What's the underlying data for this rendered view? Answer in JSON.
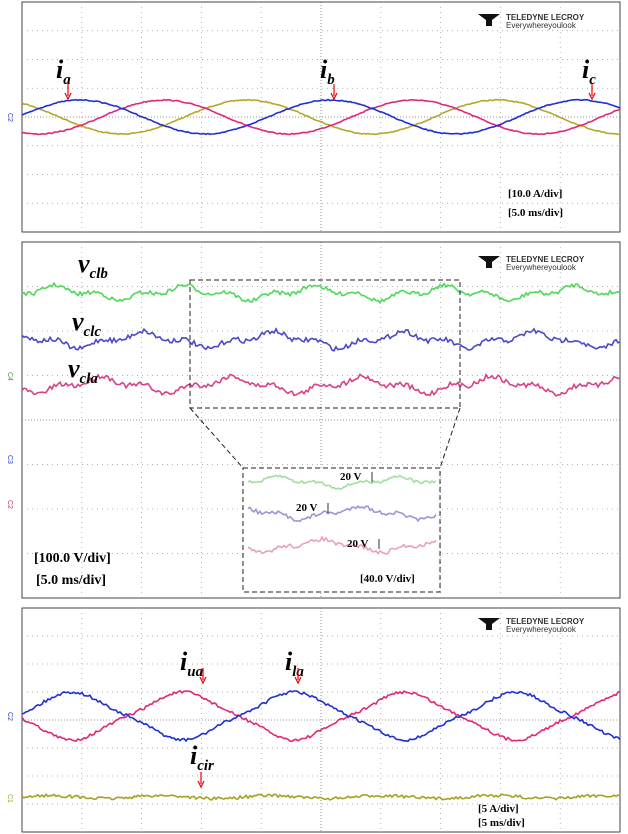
{
  "panels": [
    {
      "logo": {
        "brand": "TELEDYNE LECROY",
        "tagline": "Everywhereyoulook"
      },
      "labels": [
        {
          "main": "i",
          "sub": "a"
        },
        {
          "main": "i",
          "sub": "b"
        },
        {
          "main": "i",
          "sub": "c"
        }
      ],
      "channel": "C2",
      "scale": [
        "[10.0 A/div]",
        "[5.0 ms/div]"
      ]
    },
    {
      "logo": {
        "brand": "TELEDYNE LECROY",
        "tagline": "Everywhereyoulook"
      },
      "labels": [
        {
          "main": "v",
          "sub": "clb"
        },
        {
          "main": "v",
          "sub": "clc"
        },
        {
          "main": "v",
          "sub": "cla"
        }
      ],
      "channels": [
        "C4",
        "C3",
        "C2"
      ],
      "inset": {
        "steps": [
          "20 V",
          "20 V",
          "20 V"
        ],
        "scale": "[40.0 V/div]"
      },
      "scale": [
        "[100.0 V/div]",
        "[5.0 ms/div]"
      ]
    },
    {
      "logo": {
        "brand": "TELEDYNE LECROY",
        "tagline": "Everywhereyoulook"
      },
      "labels": [
        {
          "main": "i",
          "sub": "ua"
        },
        {
          "main": "i",
          "sub": "la"
        },
        {
          "main": "i",
          "sub": "cir"
        }
      ],
      "channels": [
        "C2",
        "C1"
      ],
      "scale": [
        "[5 A/div]",
        "[5 ms/div]"
      ]
    }
  ]
}
